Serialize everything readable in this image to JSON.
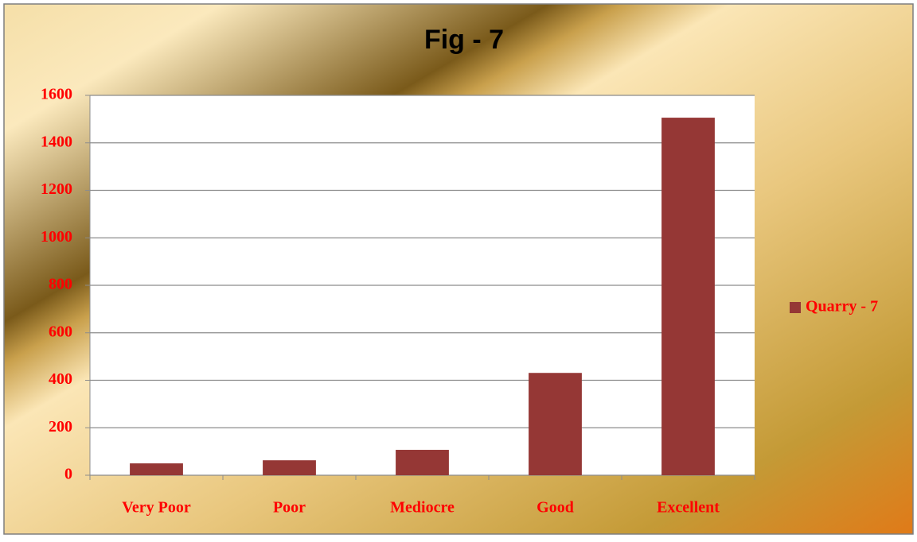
{
  "chart_data": {
    "type": "bar",
    "title": "Fig - 7",
    "categories": [
      "Very Poor",
      "Poor",
      "Mediocre",
      "Good",
      "Excellent"
    ],
    "series": [
      {
        "name": "Quarry - 7",
        "color": "#953735",
        "values": [
          50,
          63,
          107,
          431,
          1506
        ]
      }
    ],
    "ylim": [
      0,
      1600
    ],
    "yticks": [
      0,
      200,
      400,
      600,
      800,
      1000,
      1200,
      1400,
      1600
    ],
    "grid": true,
    "legend": "right"
  }
}
